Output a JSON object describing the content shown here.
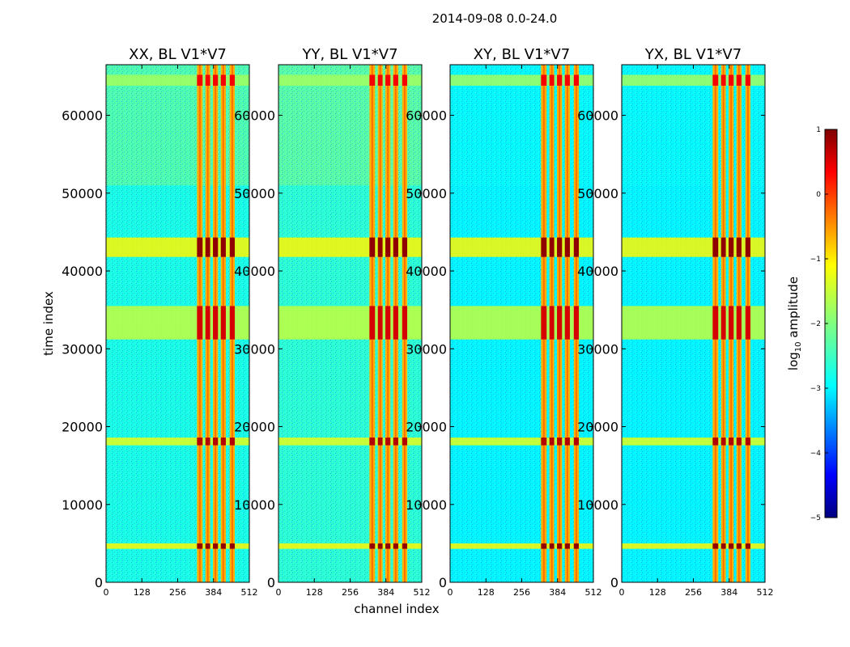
{
  "figure": {
    "suptitle": "2014-09-08 0.0-24.0",
    "xlabel": "channel index",
    "ylabel": "time index"
  },
  "chart_data": {
    "type": "heatmap",
    "x": {
      "label": "channel index",
      "range": [
        0,
        512
      ],
      "ticks": [
        0,
        128,
        256,
        384,
        512
      ]
    },
    "y": {
      "label": "time index",
      "range": [
        0,
        66500
      ],
      "ticks": [
        0,
        10000,
        20000,
        30000,
        40000,
        50000,
        60000
      ]
    },
    "colorbar": {
      "label": "log10 amplitude",
      "range": [
        -5,
        1
      ],
      "ticks": [
        1,
        0,
        -1,
        -2,
        -3,
        -4,
        -5
      ],
      "colormap": "jet"
    },
    "panels": [
      {
        "title": "XX, BL V1*V7",
        "baseline_level": -2.6,
        "top_level": -1.9
      },
      {
        "title": "YY, BL V1*V7",
        "baseline_level": -2.5,
        "top_level": -1.9
      },
      {
        "title": "XY, BL V1*V7",
        "baseline_level": -2.8,
        "top_level": -2.7
      },
      {
        "title": "YX, BL V1*V7",
        "baseline_level": -2.8,
        "top_level": -2.7
      }
    ],
    "rfi_channel_stripes": [
      {
        "start": 325,
        "end": 345
      },
      {
        "start": 355,
        "end": 372
      },
      {
        "start": 382,
        "end": 400
      },
      {
        "start": 410,
        "end": 428
      },
      {
        "start": 442,
        "end": 460
      }
    ],
    "rfi_time_bands": [
      {
        "start": 4300,
        "end": 5000,
        "level": 0.9
      },
      {
        "start": 17600,
        "end": 18600,
        "level": 0.7
      },
      {
        "start": 31200,
        "end": 35500,
        "level": 0.5
      },
      {
        "start": 41800,
        "end": 44300,
        "level": 0.9
      },
      {
        "start": 63800,
        "end": 65200,
        "level": 0.3
      }
    ]
  }
}
